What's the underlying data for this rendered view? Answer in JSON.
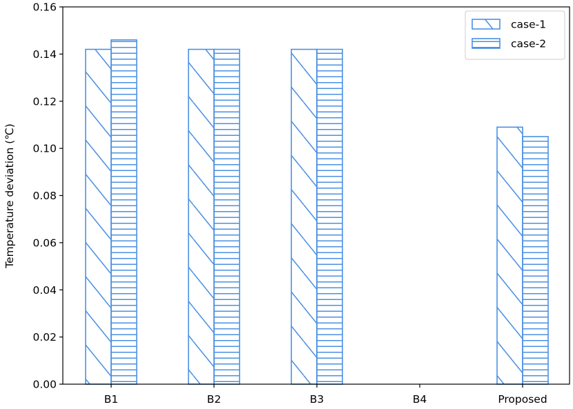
{
  "chart_data": {
    "type": "bar",
    "title": "",
    "xlabel": "",
    "ylabel": "Temperature deviation (℃)",
    "categories": [
      "B1",
      "B2",
      "B3",
      "B4",
      "Proposed"
    ],
    "series": [
      {
        "name": "case-1",
        "values": [
          0.142,
          0.142,
          0.142,
          0,
          0.109
        ],
        "hatch": "diagonal"
      },
      {
        "name": "case-2",
        "values": [
          0.146,
          0.142,
          0.142,
          0,
          0.105
        ],
        "hatch": "horizontal"
      }
    ],
    "ylim": [
      0,
      0.16
    ],
    "yticks": [
      "0.00",
      "0.02",
      "0.04",
      "0.06",
      "0.08",
      "0.10",
      "0.12",
      "0.14",
      "0.16"
    ],
    "grid": false,
    "legend_position": "top-right",
    "colors": {
      "bar_edge": "#4a90e2",
      "axis": "#000000",
      "background": "#ffffff"
    }
  }
}
